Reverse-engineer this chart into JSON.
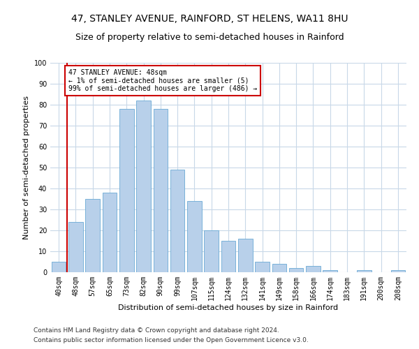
{
  "title": "47, STANLEY AVENUE, RAINFORD, ST HELENS, WA11 8HU",
  "subtitle": "Size of property relative to semi-detached houses in Rainford",
  "xlabel": "Distribution of semi-detached houses by size in Rainford",
  "ylabel": "Number of semi-detached properties",
  "footer1": "Contains HM Land Registry data © Crown copyright and database right 2024.",
  "footer2": "Contains public sector information licensed under the Open Government Licence v3.0.",
  "annotation_title": "47 STANLEY AVENUE: 48sqm",
  "annotation_line2": "← 1% of semi-detached houses are smaller (5)",
  "annotation_line3": "99% of semi-detached houses are larger (486) →",
  "bar_labels": [
    "40sqm",
    "48sqm",
    "57sqm",
    "65sqm",
    "73sqm",
    "82sqm",
    "90sqm",
    "99sqm",
    "107sqm",
    "115sqm",
    "124sqm",
    "132sqm",
    "141sqm",
    "149sqm",
    "158sqm",
    "166sqm",
    "174sqm",
    "183sqm",
    "191sqm",
    "200sqm",
    "208sqm"
  ],
  "bar_values": [
    5,
    24,
    35,
    38,
    78,
    82,
    78,
    49,
    34,
    20,
    15,
    16,
    5,
    4,
    2,
    3,
    1,
    0,
    1,
    0,
    1
  ],
  "bar_color": "#b8d0ea",
  "bar_edge_color": "#6aaad4",
  "highlight_index": 1,
  "vline_color": "#cc0000",
  "annotation_box_color": "#ffffff",
  "annotation_box_edge": "#cc0000",
  "ylim": [
    0,
    100
  ],
  "yticks": [
    0,
    10,
    20,
    30,
    40,
    50,
    60,
    70,
    80,
    90,
    100
  ],
  "bg_color": "#ffffff",
  "grid_color": "#c8d8e8",
  "title_fontsize": 10,
  "subtitle_fontsize": 9,
  "label_fontsize": 8,
  "tick_fontsize": 7,
  "footer_fontsize": 6.5
}
